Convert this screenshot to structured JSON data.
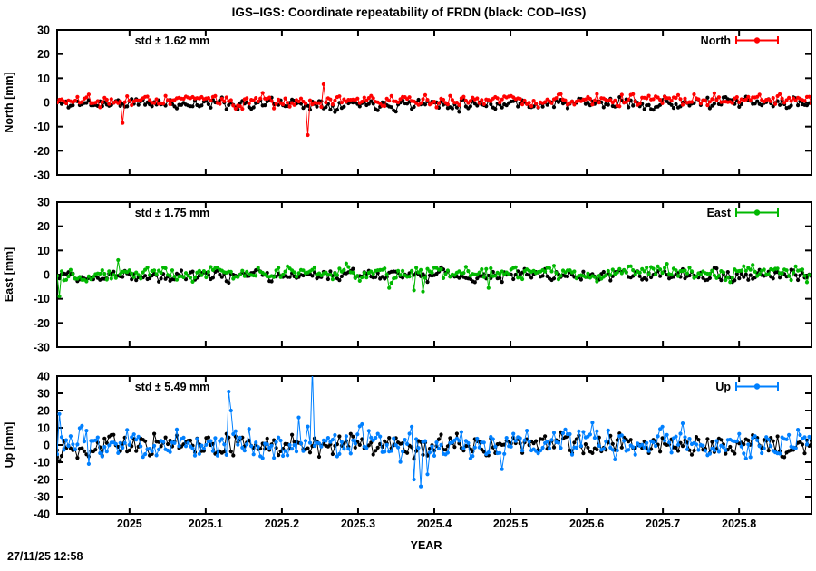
{
  "title": "IGS–IGS: Coordinate repeatability of FRDN (black: COD–IGS)",
  "timestamp": "27/11/25 12:58",
  "chart_data": {
    "type": "scatter",
    "title": "IGS–IGS: Coordinate repeatability of FRDN (black: COD–IGS)",
    "xlabel": "YEAR",
    "xlim": [
      2024.905,
      2025.895
    ],
    "xticks": [
      {
        "value": 2025.0,
        "label": "2025"
      },
      {
        "value": 2025.1,
        "label": "2025.1"
      },
      {
        "value": 2025.2,
        "label": "2025.2"
      },
      {
        "value": 2025.3,
        "label": "2025.3"
      },
      {
        "value": 2025.4,
        "label": "2025.4"
      },
      {
        "value": 2025.5,
        "label": "2025.5"
      },
      {
        "value": 2025.6,
        "label": "2025.6"
      },
      {
        "value": 2025.7,
        "label": "2025.7"
      },
      {
        "value": 2025.8,
        "label": "2025.8"
      }
    ],
    "grid": false,
    "legend_position": "top-right-inside",
    "panels": [
      {
        "name": "north",
        "ylabel": "North [mm]",
        "std_label": "std ± 1.62 mm",
        "std_mm": 1.62,
        "legend_label": "North",
        "color": "#ff0000",
        "ylim": [
          -30,
          30
        ],
        "ytick_step": 10,
        "series": [
          {
            "name": "COD-IGS reference",
            "color": "#000000",
            "n": 335,
            "seed": 11,
            "mean": -0.4,
            "std": 1.15,
            "ar": 0.35,
            "outliers": []
          },
          {
            "name": "IGS-IGS North",
            "color": "#ff0000",
            "n": 335,
            "seed": 21,
            "mean": 0.8,
            "std": 1.2,
            "ar": 0.35,
            "outliers": [
              [
                2024.99,
                -8.5
              ],
              [
                2025.235,
                -13.5
              ],
              [
                2025.256,
                7.5
              ]
            ]
          }
        ]
      },
      {
        "name": "east",
        "ylabel": "East [mm]",
        "std_label": "std ± 1.75 mm",
        "std_mm": 1.75,
        "legend_label": "East",
        "color": "#00b800",
        "ylim": [
          -30,
          30
        ],
        "ytick_step": 10,
        "series": [
          {
            "name": "COD-IGS reference",
            "color": "#000000",
            "n": 335,
            "seed": 12,
            "mean": -0.2,
            "std": 1.15,
            "ar": 0.35,
            "outliers": []
          },
          {
            "name": "IGS-IGS East",
            "color": "#00b800",
            "n": 335,
            "seed": 22,
            "mean": 0.6,
            "std": 1.3,
            "ar": 0.35,
            "outliers": [
              [
                2024.908,
                -9
              ],
              [
                2024.985,
                6
              ],
              [
                2025.34,
                -5.5
              ],
              [
                2025.372,
                -6.5
              ],
              [
                2025.385,
                -7
              ],
              [
                2025.47,
                -5.5
              ]
            ]
          }
        ]
      },
      {
        "name": "up",
        "ylabel": "Up [mm]",
        "std_label": "std ± 5.49 mm",
        "std_mm": 5.49,
        "legend_label": "Up",
        "color": "#0080ff",
        "ylim": [
          -40,
          40
        ],
        "ytick_step": 10,
        "series": [
          {
            "name": "COD-IGS reference",
            "color": "#000000",
            "n": 335,
            "seed": 13,
            "mean": 0.0,
            "std": 3.0,
            "ar": 0.35,
            "outliers": []
          },
          {
            "name": "IGS-IGS Up",
            "color": "#0080ff",
            "n": 335,
            "seed": 23,
            "mean": 0.6,
            "std": 4.2,
            "ar": 0.35,
            "outliers": [
              [
                2024.908,
                18
              ],
              [
                2024.947,
                -11
              ],
              [
                2025.13,
                31
              ],
              [
                2025.133,
                20
              ],
              [
                2025.222,
                16
              ],
              [
                2025.241,
                44
              ],
              [
                2025.372,
                -20
              ],
              [
                2025.383,
                -24
              ],
              [
                2025.392,
                -17
              ],
              [
                2025.49,
                -14
              ]
            ]
          }
        ]
      }
    ]
  }
}
